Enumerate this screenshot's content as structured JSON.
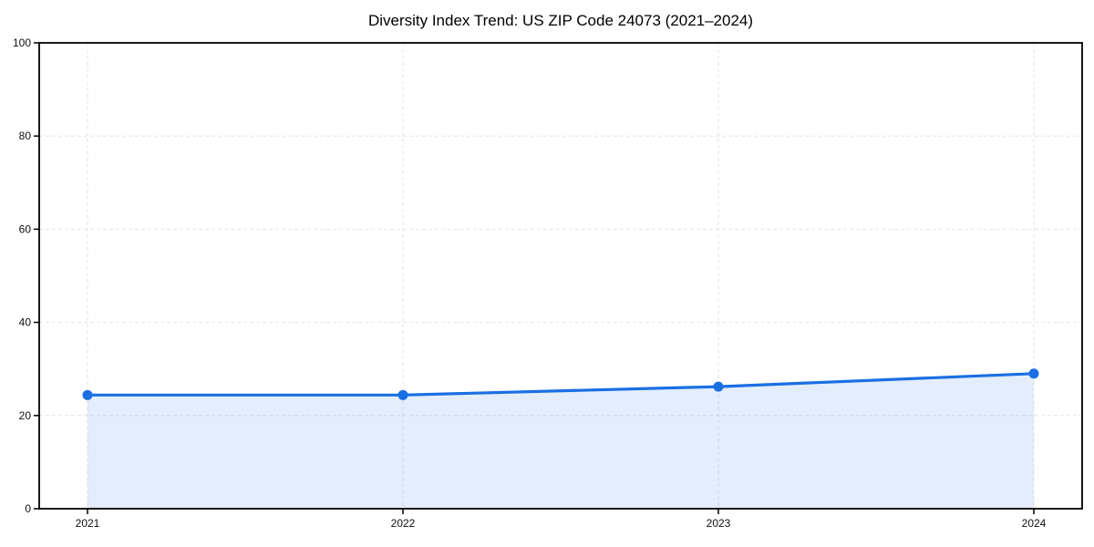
{
  "chart_data": {
    "type": "line",
    "title": "Diversity Index Trend: US ZIP Code 24073 (2021–2024)",
    "categories": [
      "2021",
      "2022",
      "2023",
      "2024"
    ],
    "series": [
      {
        "name": "Diversity Index",
        "values": [
          24.4,
          24.4,
          26.2,
          29.0
        ]
      }
    ],
    "xlabel": "",
    "ylabel": "",
    "ylim": [
      0,
      100
    ],
    "yticks": [
      0,
      20,
      40,
      60,
      80,
      100
    ],
    "grid": "dashed-both-axes",
    "legend": "none",
    "marker": "circle",
    "area_fill_between_first_and_last_point": true,
    "colors": {
      "line": "#1a6fe3",
      "area": "#1a6fe3",
      "grid": "#e4e4e4",
      "spine": "#000000",
      "tick_text": "#111111",
      "background": "#ffffff"
    },
    "area_opacity": 0.12
  }
}
